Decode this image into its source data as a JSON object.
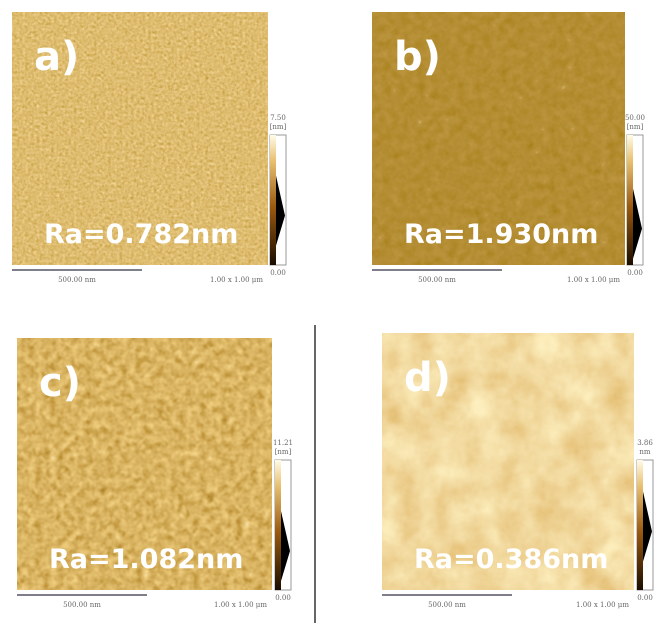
{
  "panels": [
    {
      "label": "a)",
      "ra": "Ra=0.782nm",
      "scale_bar": "500.00 nm",
      "scan_size": "1.00 x 1.00 μm",
      "colorbar": {
        "max": "7.50",
        "unit": "[nm]",
        "min": "0.00"
      }
    },
    {
      "label": "b)",
      "ra": "Ra=1.930nm",
      "scale_bar": "500.00 nm",
      "scan_size": "1.00 x 1.00 μm",
      "colorbar": {
        "max": "50.00",
        "unit": "[nm]",
        "min": "0.00"
      }
    },
    {
      "label": "c)",
      "ra": "Ra=1.082nm",
      "scale_bar": "500.00 nm",
      "scan_size": "1.00 x 1.00 μm",
      "colorbar": {
        "max": "11.21",
        "unit": "[nm]",
        "min": "0.00"
      }
    },
    {
      "label": "d)",
      "ra": "Ra=0.386nm",
      "scale_bar": "500.00 nm",
      "scan_size": "1.00 x 1.00 μm",
      "colorbar": {
        "max": "3.86",
        "unit": "nm",
        "min": "0.00"
      }
    }
  ]
}
